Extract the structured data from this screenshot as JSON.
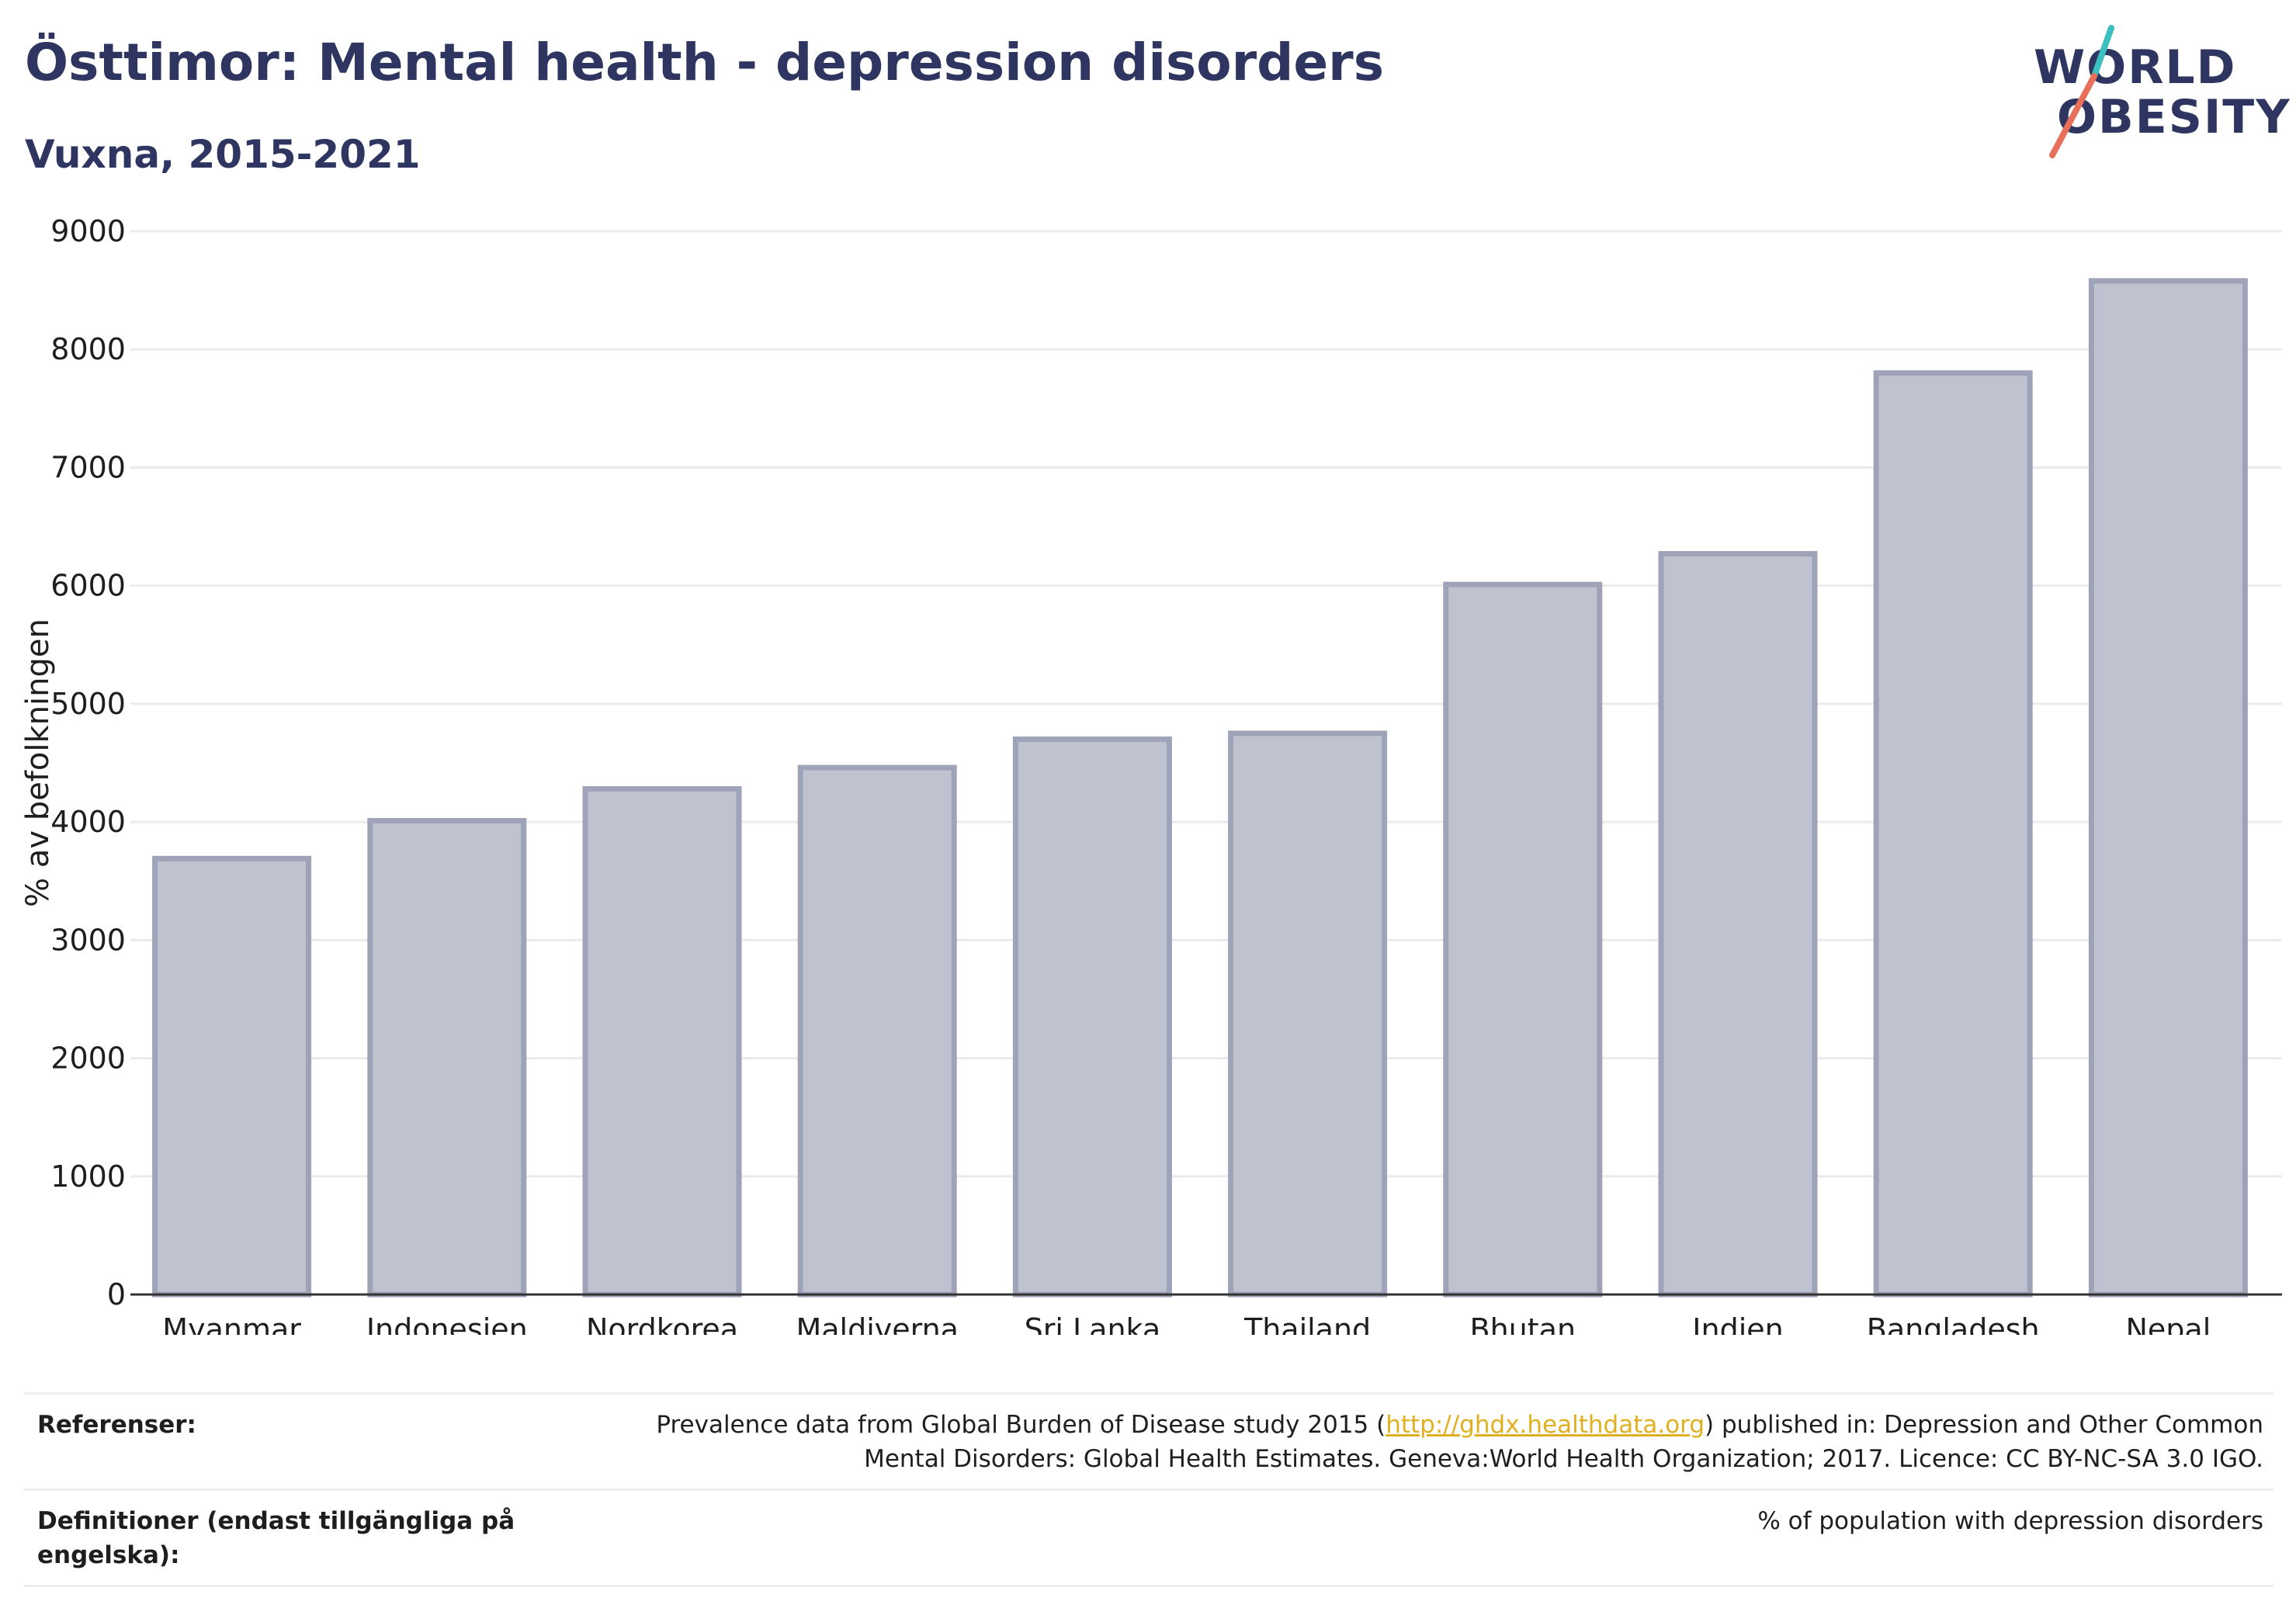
{
  "header": {
    "title": "Östtimor: Mental health - depression disorders",
    "subtitle": "Vuxna, 2015-2021"
  },
  "logo": {
    "line1": "WORLD",
    "line2": "OBESITY",
    "colors": {
      "text": "#2d3560",
      "slash_top": "#3bbfbf",
      "slash_bottom": "#e8705a"
    }
  },
  "chart_data": {
    "type": "bar",
    "categories": [
      "Myanmar",
      "Indonesien",
      "Nordkorea",
      "Maldiverna",
      "Sri Lanka",
      "Thailand",
      "Bhutan",
      "Indien",
      "Bangladesh",
      "Nepal"
    ],
    "values": [
      3690,
      4010,
      4280,
      4460,
      4700,
      4750,
      6010,
      6270,
      7800,
      8580
    ],
    "ylabel": "% av befolkningen",
    "xlabel": "",
    "ylim": [
      0,
      9000
    ],
    "yticks": [
      0,
      1000,
      2000,
      3000,
      4000,
      5000,
      6000,
      7000,
      8000,
      9000
    ],
    "grid": true,
    "colors": {
      "bar_fill": "#bfc2cf",
      "bar_stroke": "#9ea3b8",
      "axis": "#333333",
      "grid": "#ebebeb"
    }
  },
  "footer": {
    "references_label": "Referenser:",
    "references_pre": "Prevalence data from Global Burden of Disease study 2015 (",
    "references_link": "http://ghdx.healthdata.org",
    "references_post": ") published in: Depression and Other Common",
    "references_line2": "Mental Disorders: Global Health Estimates. Geneva:World Health Organization; 2017. Licence: CC BY-NC-SA 3.0 IGO.",
    "definitions_label_line1": "Definitioner (endast tillgängliga på",
    "definitions_label_line2": "engelska):",
    "definitions_value": "% of population with depression disorders"
  }
}
